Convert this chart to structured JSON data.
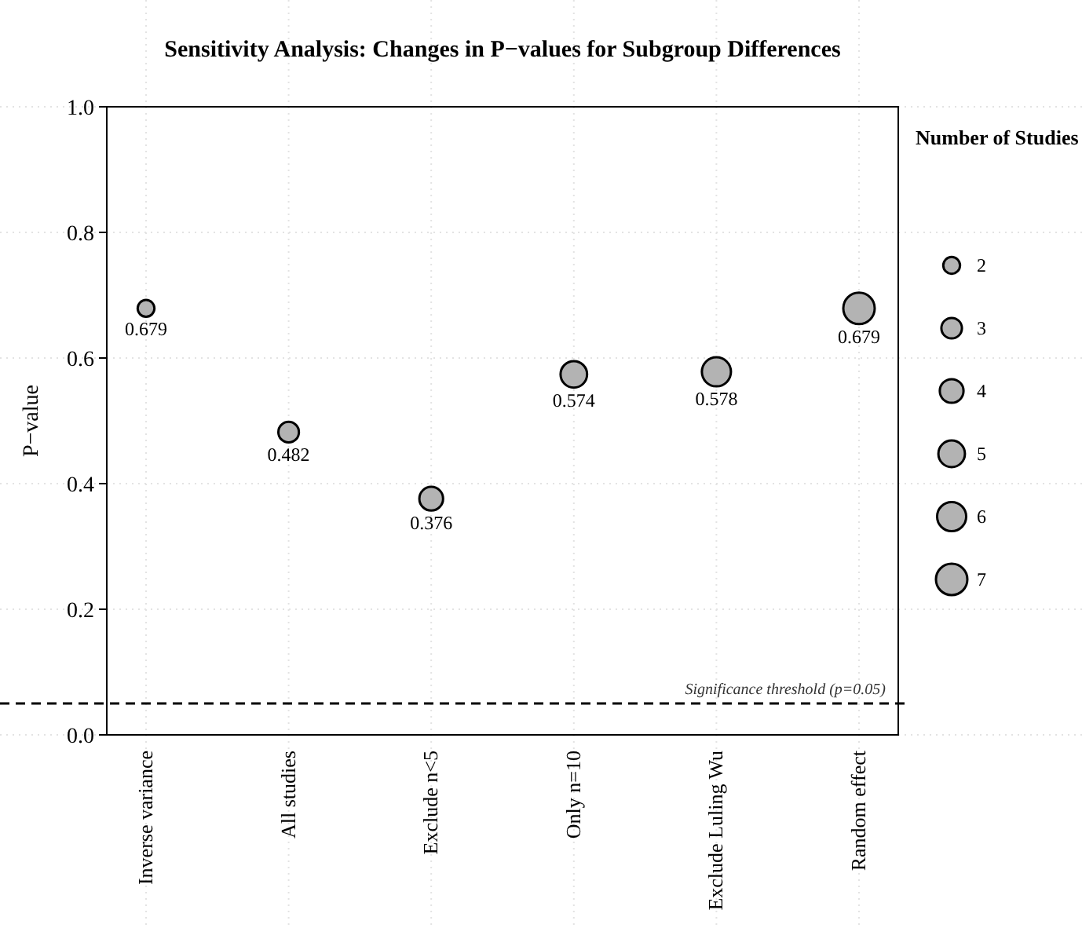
{
  "chart_data": {
    "type": "bubble",
    "title": "Sensitivity Analysis: Changes in P−values for Subgroup Differences",
    "ylabel": "P−value",
    "legend_title": "Number of Studies",
    "categories": [
      "Inverse variance",
      "All studies",
      "Exclude n<5",
      "Only n=10",
      "Exclude Luling Wu",
      "Random effect"
    ],
    "values": [
      0.679,
      0.482,
      0.376,
      0.574,
      0.578,
      0.679
    ],
    "sizes": [
      2,
      3,
      4,
      5,
      6,
      7
    ],
    "size_legend": [
      2,
      3,
      4,
      5,
      6,
      7
    ],
    "color": "#b3b3b3",
    "marker": "circle",
    "data_labels": true,
    "legend": "right",
    "grid": true,
    "ylim": [
      0,
      1
    ],
    "yticks": [
      {
        "value": 0,
        "label": "0.0"
      },
      {
        "value": 0.2,
        "label": "0.2"
      },
      {
        "value": 0.4,
        "label": "0.4"
      },
      {
        "value": 0.6,
        "label": "0.6"
      },
      {
        "value": 0.8,
        "label": "0.8"
      },
      {
        "value": 1,
        "label": "1.0"
      }
    ],
    "ref_lines": [
      {
        "axis": "y",
        "value": 0.05,
        "label": "Significance threshold (p=0.05)",
        "line_style": "dashed",
        "color": "#000000"
      }
    ]
  }
}
